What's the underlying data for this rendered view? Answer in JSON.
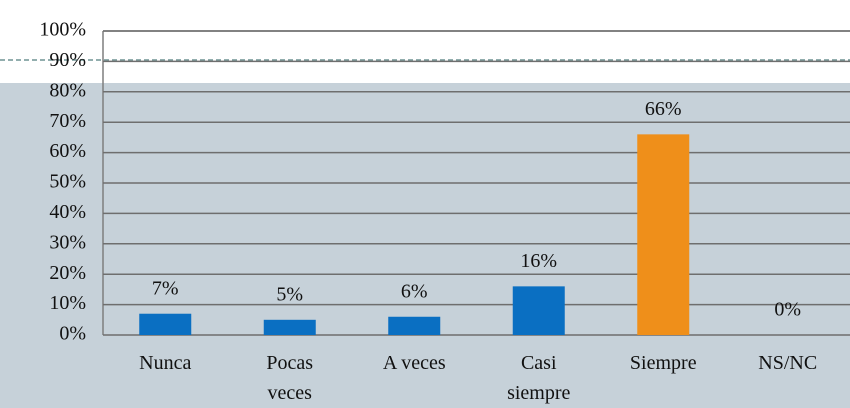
{
  "chart_data": {
    "type": "bar",
    "categories": [
      "Nunca",
      "Pocas\nveces",
      "A veces",
      "Casi\nsiempre",
      "Siempre",
      "NS/NC"
    ],
    "values": [
      7,
      5,
      6,
      16,
      66,
      0
    ],
    "value_labels": [
      "7%",
      "5%",
      "6%",
      "16%",
      "66%",
      "0%"
    ],
    "colors": [
      "#0a6fc2",
      "#0a6fc2",
      "#0a6fc2",
      "#0a6fc2",
      "#ef8f1a",
      "#0a6fc2"
    ],
    "ylim": [
      0,
      100
    ],
    "yticks": [
      {
        "value": 0,
        "label": "0%"
      },
      {
        "value": 10,
        "label": "10%"
      },
      {
        "value": 20,
        "label": "20%"
      },
      {
        "value": 30,
        "label": "30%"
      },
      {
        "value": 40,
        "label": "40%"
      },
      {
        "value": 50,
        "label": "50%"
      },
      {
        "value": 60,
        "label": "60%"
      },
      {
        "value": 70,
        "label": "70%"
      },
      {
        "value": 80,
        "label": "80%"
      },
      {
        "value": 90,
        "label": "90%"
      },
      {
        "value": 100,
        "label": "100%"
      }
    ],
    "grid": true
  }
}
